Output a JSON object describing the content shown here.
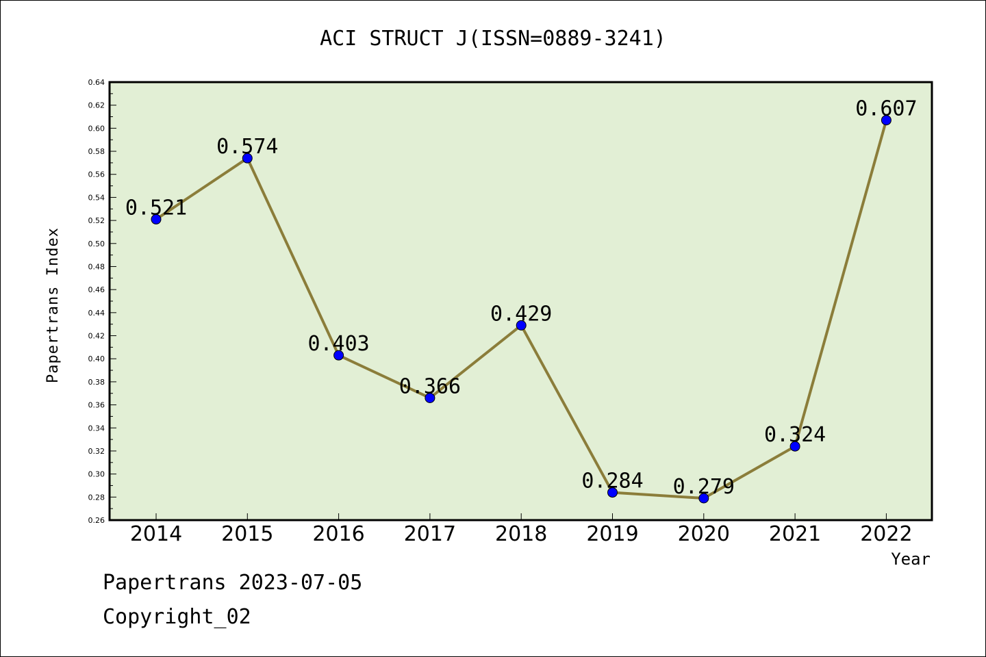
{
  "chart_data": {
    "type": "line",
    "title": "ACI STRUCT J(ISSN=0889-3241)",
    "xlabel": "Year",
    "ylabel": "Papertrans Index",
    "categories": [
      "2014",
      "2015",
      "2016",
      "2017",
      "2018",
      "2019",
      "2020",
      "2021",
      "2022"
    ],
    "series": [
      {
        "values": [
          0.521,
          0.574,
          0.403,
          0.366,
          0.429,
          0.284,
          0.279,
          0.324,
          0.607
        ],
        "labels": [
          "0.521",
          "0.574",
          "0.403",
          "0.366",
          "0.429",
          "0.284",
          "0.279",
          "0.324",
          "0.607"
        ]
      }
    ],
    "ylim": [
      0.26,
      0.64
    ],
    "yticks": [
      "0.26",
      "0.28",
      "0.30",
      "0.32",
      "0.34",
      "0.36",
      "0.38",
      "0.40",
      "0.42",
      "0.44",
      "0.46",
      "0.48",
      "0.50",
      "0.52",
      "0.54",
      "0.56",
      "0.58",
      "0.60",
      "0.62",
      "0.64"
    ],
    "grid": false,
    "colors": {
      "plot_background": "#e2efd5",
      "line": "#8b7d3a",
      "marker": "#0000ff"
    }
  },
  "footer": {
    "line1": "Papertrans 2023-07-05",
    "line2": "Copyright_02"
  }
}
